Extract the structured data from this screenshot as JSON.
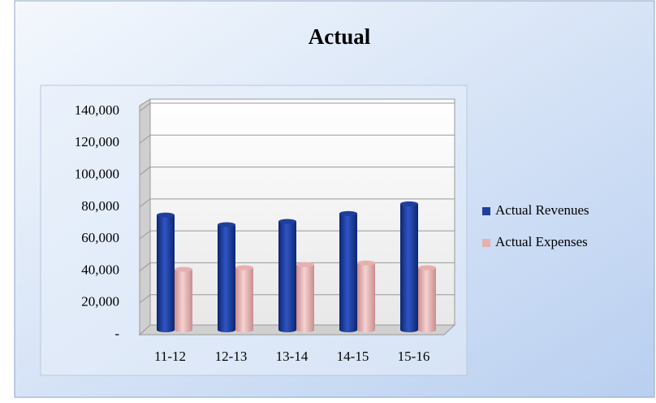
{
  "chart_data": {
    "type": "bar",
    "title": "Actual",
    "categories": [
      "11-12",
      "12-13",
      "13-14",
      "14-15",
      "15-16"
    ],
    "series": [
      {
        "name": "Actual Revenues",
        "color": "#1f3f9a",
        "values": [
          75000,
          69000,
          71000,
          76000,
          82000
        ]
      },
      {
        "name": "Actual Expenses",
        "color": "#e6b0b0",
        "values": [
          41000,
          42000,
          44000,
          45000,
          42000
        ]
      }
    ],
    "ylim": [
      0,
      140000
    ],
    "yticks": [
      {
        "value": 0,
        "label": "-"
      },
      {
        "value": 20000,
        "label": "20,000"
      },
      {
        "value": 40000,
        "label": "40,000"
      },
      {
        "value": 60000,
        "label": "60,000"
      },
      {
        "value": 80000,
        "label": "80,000"
      },
      {
        "value": 100000,
        "label": "100,000"
      },
      {
        "value": 120000,
        "label": "120,000"
      },
      {
        "value": 140000,
        "label": "140,000"
      }
    ],
    "grid": true,
    "legend": "right"
  }
}
